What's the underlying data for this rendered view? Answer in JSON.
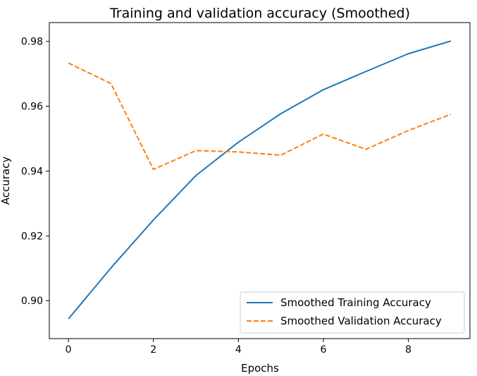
{
  "chart_data": {
    "type": "line",
    "title": "Training and validation accuracy (Smoothed)",
    "xlabel": "Epochs",
    "ylabel": "Accuracy",
    "xlim": [
      -0.45,
      9.45
    ],
    "ylim": [
      0.8883,
      0.9858
    ],
    "x_ticks": [
      0,
      2,
      4,
      6,
      8
    ],
    "x_tick_labels": [
      "0",
      "2",
      "4",
      "6",
      "8"
    ],
    "y_ticks": [
      0.9,
      0.92,
      0.94,
      0.96,
      0.98
    ],
    "y_tick_labels": [
      "0.90",
      "0.92",
      "0.94",
      "0.96",
      "0.98"
    ],
    "x": [
      0,
      1,
      2,
      3,
      4,
      5,
      6,
      7,
      8,
      9
    ],
    "series": [
      {
        "name": "Smoothed Training Accuracy",
        "color": "#1f77b4",
        "linestyle": "solid",
        "values": [
          0.8944,
          0.9101,
          0.9249,
          0.9386,
          0.9489,
          0.9577,
          0.9651,
          0.9707,
          0.9762,
          0.9801
        ]
      },
      {
        "name": "Smoothed Validation Accuracy",
        "color": "#ff7f0e",
        "linestyle": "dashed",
        "values": [
          0.9733,
          0.967,
          0.9405,
          0.9463,
          0.9459,
          0.9449,
          0.9514,
          0.9467,
          0.9525,
          0.9575
        ]
      }
    ],
    "grid": false,
    "legend_position": "lower-right"
  }
}
